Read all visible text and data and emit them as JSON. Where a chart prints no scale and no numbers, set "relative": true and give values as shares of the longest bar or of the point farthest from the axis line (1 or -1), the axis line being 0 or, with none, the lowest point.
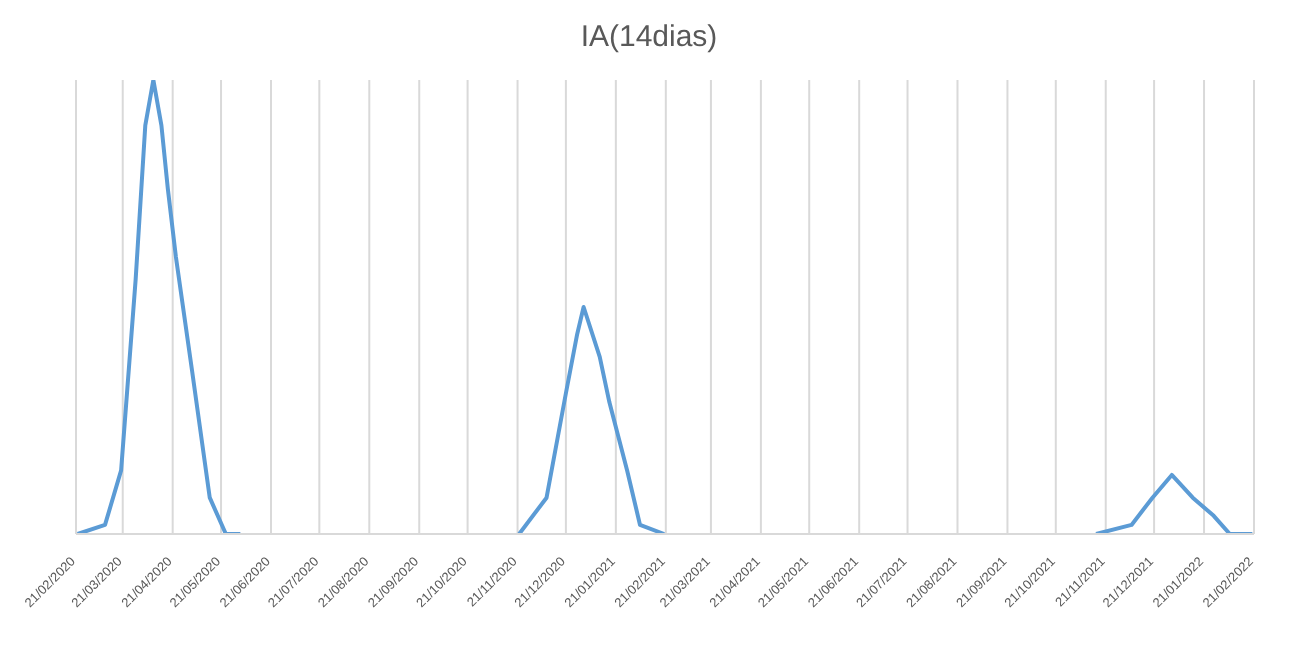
{
  "chart_data": {
    "type": "line",
    "title": "IA(14dias)",
    "relative": true,
    "x": [
      "2020-02-22",
      "2020-03-10",
      "2020-03-20",
      "2020-03-29",
      "2020-04-04",
      "2020-04-09",
      "2020-04-14",
      "2020-04-18",
      "2020-04-23",
      "2020-05-03",
      "2020-05-14",
      "2020-05-24",
      "2020-06-02",
      "2020-09-01",
      "2020-11-22",
      "2020-12-09",
      "2020-12-21",
      "2020-12-28",
      "2021-01-01",
      "2021-01-11",
      "2021-01-17",
      "2021-01-28",
      "2021-02-05",
      "2021-02-20",
      "2021-06-01",
      "2021-11-15",
      "2021-12-07",
      "2021-12-20",
      "2022-01-01",
      "2022-01-14",
      "2022-01-27",
      "2022-02-06",
      "2022-02-20"
    ],
    "series": [
      {
        "color": "#5b9bd5",
        "values": [
          0,
          0.02,
          0.14,
          0.56,
          0.9,
          1,
          0.9,
          0.76,
          0.61,
          0.36,
          0.08,
          0,
          0,
          null,
          0,
          0.08,
          0.31,
          0.44,
          0.5,
          0.39,
          0.29,
          0.14,
          0.02,
          0,
          null,
          0,
          0.02,
          0.08,
          0.13,
          0.08,
          0.04,
          0,
          0
        ]
      }
    ],
    "xlim": [
      "2020-02-21",
      "2022-02-21"
    ],
    "xticks": [
      {
        "value": "2020-02-21",
        "label": "21/02/2020"
      },
      {
        "value": "2020-03-21",
        "label": "21/03/2020"
      },
      {
        "value": "2020-04-21",
        "label": "21/04/2020"
      },
      {
        "value": "2020-05-21",
        "label": "21/05/2020"
      },
      {
        "value": "2020-06-21",
        "label": "21/06/2020"
      },
      {
        "value": "2020-07-21",
        "label": "21/07/2020"
      },
      {
        "value": "2020-08-21",
        "label": "21/08/2020"
      },
      {
        "value": "2020-09-21",
        "label": "21/09/2020"
      },
      {
        "value": "2020-10-21",
        "label": "21/10/2020"
      },
      {
        "value": "2020-11-21",
        "label": "21/11/2020"
      },
      {
        "value": "2020-12-21",
        "label": "21/12/2020"
      },
      {
        "value": "2021-01-21",
        "label": "21/01/2021"
      },
      {
        "value": "2021-02-21",
        "label": "21/02/2021"
      },
      {
        "value": "2021-03-21",
        "label": "21/03/2021"
      },
      {
        "value": "2021-04-21",
        "label": "21/04/2021"
      },
      {
        "value": "2021-05-21",
        "label": "21/05/2021"
      },
      {
        "value": "2021-06-21",
        "label": "21/06/2021"
      },
      {
        "value": "2021-07-21",
        "label": "21/07/2021"
      },
      {
        "value": "2021-08-21",
        "label": "21/08/2021"
      },
      {
        "value": "2021-09-21",
        "label": "21/09/2021"
      },
      {
        "value": "2021-10-21",
        "label": "21/10/2021"
      },
      {
        "value": "2021-11-21",
        "label": "21/11/2021"
      },
      {
        "value": "2021-12-21",
        "label": "21/12/2021"
      },
      {
        "value": "2022-01-21",
        "label": "21/01/2022"
      },
      {
        "value": "2022-02-21",
        "label": "21/02/2022"
      }
    ],
    "grid": "x",
    "marker": "none",
    "line_style": "solid",
    "legend": false
  }
}
